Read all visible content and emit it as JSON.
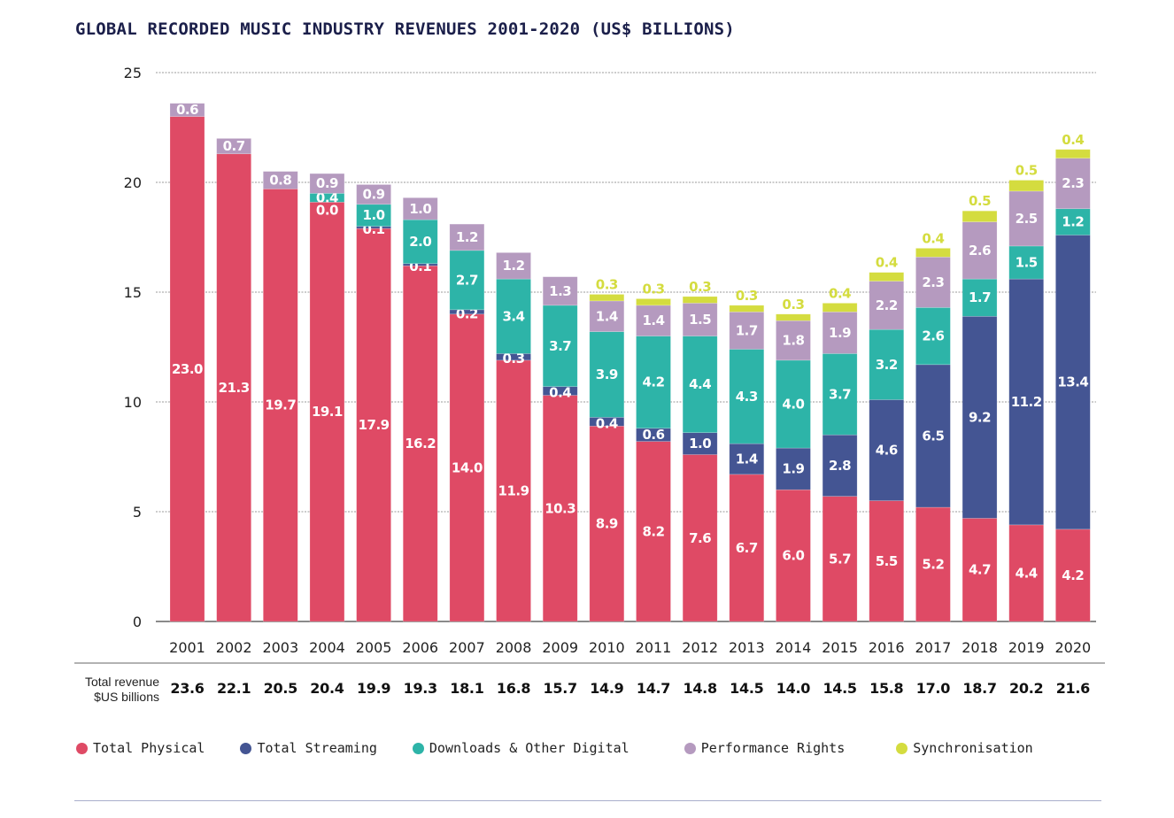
{
  "chart_data": {
    "type": "bar",
    "stacked": true,
    "title": "GLOBAL RECORDED MUSIC INDUSTRY REVENUES 2001-2020 (US$ BILLIONS)",
    "xlabel": "",
    "ylabel": "",
    "ylim": [
      0,
      25
    ],
    "yticks": [
      0,
      5,
      10,
      15,
      20,
      25
    ],
    "grid": true,
    "legend_position": "bottom",
    "categories": [
      "2001",
      "2002",
      "2003",
      "2004",
      "2005",
      "2006",
      "2007",
      "2008",
      "2009",
      "2010",
      "2011",
      "2012",
      "2013",
      "2014",
      "2015",
      "2016",
      "2017",
      "2018",
      "2019",
      "2020"
    ],
    "series": [
      {
        "name": "Total Physical",
        "color": "#df4a65",
        "values": [
          23.0,
          21.3,
          19.7,
          19.1,
          17.9,
          16.2,
          14.0,
          11.9,
          10.3,
          8.9,
          8.2,
          7.6,
          6.7,
          6.0,
          5.7,
          5.5,
          5.2,
          4.7,
          4.4,
          4.2
        ]
      },
      {
        "name": "Total Streaming",
        "color": "#445593",
        "values": [
          null,
          null,
          null,
          0.0,
          0.1,
          0.1,
          0.2,
          0.3,
          0.4,
          0.4,
          0.6,
          1.0,
          1.4,
          1.9,
          2.8,
          4.6,
          6.5,
          9.2,
          11.2,
          13.4
        ]
      },
      {
        "name": "Downloads & Other Digital",
        "color": "#2db4a8",
        "values": [
          null,
          null,
          null,
          0.4,
          1.0,
          2.0,
          2.7,
          3.4,
          3.7,
          3.9,
          4.2,
          4.4,
          4.3,
          4.0,
          3.7,
          3.2,
          2.6,
          1.7,
          1.5,
          1.2
        ]
      },
      {
        "name": "Performance Rights",
        "color": "#b59abf",
        "values": [
          0.6,
          0.7,
          0.8,
          0.9,
          0.9,
          1.0,
          1.2,
          1.2,
          1.3,
          1.4,
          1.4,
          1.5,
          1.7,
          1.8,
          1.9,
          2.2,
          2.3,
          2.6,
          2.5,
          2.3
        ]
      },
      {
        "name": "Synchronisation",
        "color": "#d4dc3f",
        "values": [
          null,
          null,
          null,
          null,
          null,
          null,
          null,
          null,
          null,
          0.3,
          0.3,
          0.3,
          0.3,
          0.3,
          0.4,
          0.4,
          0.4,
          0.5,
          0.5,
          0.4
        ]
      }
    ],
    "totals_caption_line1": "Total revenue",
    "totals_caption_line2": "$US billions",
    "totals": [
      "23.6",
      "22.1",
      "20.5",
      "20.4",
      "19.9",
      "19.3",
      "18.1",
      "16.8",
      "15.7",
      "14.9",
      "14.7",
      "14.8",
      "14.5",
      "14.0",
      "14.5",
      "15.8",
      "17.0",
      "18.7",
      "20.2",
      "21.6"
    ]
  }
}
